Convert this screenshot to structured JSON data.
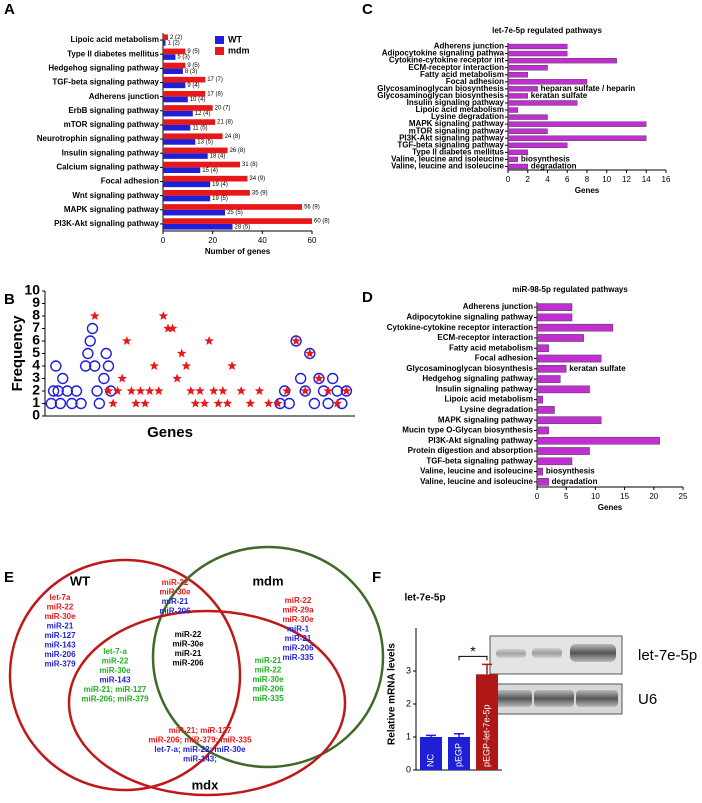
{
  "panel_labels": [
    "A",
    "B",
    "C",
    "D",
    "E",
    "F"
  ],
  "chart_data": [
    {
      "type": "hbar",
      "xlabel": "Number of genes",
      "categories": [
        "Lipoic acid metabolism",
        "Type II diabetes mellitus",
        "Hedgehog signaling pathway",
        "TGF-beta signaling pathway",
        "Adherens junction",
        "ErbB signaling pathway",
        "mTOR signaling pathway",
        "Neurotrophin signaling pathway",
        "Insulin signaling pathway",
        "Calcium signaling pathway",
        "Focal adhesion",
        "Wnt signaling pathway",
        "MAPK signaling pathway",
        "PI3K-Akt signaling pathway"
      ],
      "series": [
        {
          "name": "WT",
          "color": "#1f1fd8",
          "values": [
            1,
            5,
            8,
            9,
            10,
            12,
            11,
            13,
            18,
            15,
            19,
            19,
            25,
            28
          ],
          "value_labels": [
            "1 (2)",
            "5 (3)",
            "8 (3)",
            "9 (4)",
            "10 (4)",
            "12 (4)",
            "11 (5)",
            "13 (5)",
            "18 (4)",
            "15 (4)",
            "19 (4)",
            "19 (5)",
            "25 (5)",
            "28 (5)"
          ]
        },
        {
          "name": "mdm",
          "color": "#e81818",
          "values": [
            2,
            9,
            9,
            17,
            17,
            20,
            21,
            24,
            26,
            31,
            34,
            35,
            56,
            60
          ],
          "value_labels": [
            "2 (2)",
            "9 (5)",
            "9 (5)",
            "17 (7)",
            "17 (8)",
            "20 (7)",
            "21 (8)",
            "24 (8)",
            "26 (8)",
            "31 (8)",
            "34 (9)",
            "35 (9)",
            "56 (9)",
            "60 (8)"
          ]
        }
      ],
      "xlim": [
        0,
        60
      ],
      "xticks": [
        0,
        20,
        40,
        60
      ],
      "legend": "top-right"
    },
    {
      "type": "scatter",
      "xlabel": "Genes",
      "ylabel": "Frequency",
      "series": [
        {
          "name": "WT",
          "color": "#1f1fd8",
          "marker": "circle",
          "x": [
            1,
            2,
            3,
            4,
            5,
            6,
            8,
            10,
            12,
            14,
            16,
            17,
            18,
            19,
            20,
            21,
            22,
            24,
            25,
            26,
            27,
            101,
            103,
            105,
            108,
            110,
            112,
            114,
            116,
            118,
            120,
            122,
            124,
            126,
            128,
            130
          ],
          "values": [
            1,
            2,
            4,
            2,
            1,
            3,
            2,
            1,
            2,
            1,
            4,
            5,
            6,
            7,
            4,
            2,
            1,
            3,
            5,
            4,
            2,
            1,
            2,
            1,
            6,
            3,
            2,
            5,
            1,
            3,
            2,
            1,
            3,
            2,
            1,
            2
          ]
        },
        {
          "name": "mdm",
          "color": "#e81818",
          "marker": "star",
          "x": [
            20,
            26,
            28,
            30,
            32,
            34,
            36,
            38,
            40,
            42,
            44,
            46,
            48,
            50,
            52,
            54,
            56,
            58,
            60,
            62,
            64,
            66,
            68,
            70,
            72,
            74,
            76,
            78,
            80,
            84,
            88,
            92,
            96,
            100,
            104,
            108,
            112,
            114,
            118,
            122,
            126,
            130
          ],
          "values": [
            8,
            2,
            1,
            2,
            3,
            6,
            2,
            1,
            2,
            1,
            2,
            4,
            2,
            8,
            7,
            7,
            3,
            5,
            4,
            2,
            1,
            2,
            1,
            6,
            2,
            1,
            2,
            1,
            4,
            2,
            1,
            2,
            1,
            1,
            2,
            6,
            2,
            5,
            3,
            2,
            1,
            2
          ]
        }
      ],
      "xlim": [
        0,
        132
      ],
      "ylim": [
        0,
        10
      ],
      "yticks": [
        0,
        1,
        2,
        3,
        4,
        5,
        6,
        7,
        8,
        9,
        10
      ]
    },
    {
      "type": "hbar",
      "title": "let-7e-5p regulated pathways",
      "xlabel": "Genes",
      "color": "#c030d0",
      "categories": [
        "Adherens junction",
        "Adipocytokine signaling pathwa",
        "Cytokine-cytokine receptor int",
        "ECM-receptor interaction",
        "Fatty acid metabolism",
        "Focal adhesion",
        "Glycosaminoglycan biosynthesis",
        "Glycosaminoglycan biosynthesis",
        "Insulin signaling pathway",
        "Lipoic acid metabolism",
        "Lysine degradation",
        "MAPK signaling pathway",
        "mTOR signaling pathway",
        "PI3K-Akt signaling pathway",
        "TGF-beta signaling pathway",
        "Type II diabetes mellitus",
        "Valine, leucine and isoleucine",
        "Valine, leucine and isoleucine"
      ],
      "values": [
        6,
        6,
        11,
        4,
        2,
        8,
        3,
        2,
        7,
        1,
        4,
        14,
        4,
        14,
        6,
        2,
        1,
        2
      ],
      "bar_notes": [
        null,
        null,
        null,
        null,
        null,
        null,
        "heparan sulfate / heparin",
        "keratan sulfate",
        null,
        null,
        null,
        null,
        null,
        null,
        null,
        null,
        "biosynthesis",
        "degradation"
      ],
      "xlim": [
        0,
        16
      ],
      "xticks": [
        0,
        2,
        4,
        6,
        8,
        10,
        12,
        14,
        16
      ]
    },
    {
      "type": "hbar",
      "title": "miR-98-5p regulated pathways",
      "xlabel": "Genes",
      "color": "#c030d0",
      "categories": [
        "Adherens junction",
        "Adipocytokine signaling pathway",
        "Cytokine-cytokine receptor interaction",
        "ECM-receptor interaction",
        "Fatty acid metabolism",
        "Focal adhesion",
        "Glycosaminoglycan biosynthesis",
        "Hedgehog signaling pathway",
        "Insulin signaling pathway",
        "Lipoic acid metabolism",
        "Lysine degradation",
        "MAPK signaling pathway",
        "Mucin type O-Glycan biosynthesis",
        "PI3K-Akt signaling pathway",
        "Protein digestion and absorption",
        "TGF-beta signaling pathway",
        "Valine, leucine and isoleucine",
        "Valine, leucine and isoleucine"
      ],
      "values": [
        6,
        6,
        13,
        8,
        2,
        11,
        5,
        4,
        9,
        1,
        3,
        11,
        2,
        21,
        9,
        6,
        1,
        2
      ],
      "bar_notes": [
        null,
        null,
        null,
        null,
        null,
        null,
        "keratan sulfate",
        null,
        null,
        null,
        null,
        null,
        null,
        null,
        null,
        null,
        "biosynthesis",
        "degradation"
      ],
      "xlim": [
        0,
        25
      ],
      "xticks": [
        0,
        5,
        10,
        15,
        20,
        25
      ]
    },
    {
      "type": "vbar",
      "title": "let-7e-5p",
      "ylabel": "Relative mRNA levels",
      "categories": [
        "NC",
        "pEGP",
        "pEGP-let-7e-5p"
      ],
      "values": [
        1,
        1,
        2.9
      ],
      "errors": [
        0.05,
        0.1,
        0.3
      ],
      "colors": [
        "#1f1fd8",
        "#1f1fd8",
        "#b01818"
      ],
      "significance": "*",
      "ylim": [
        0,
        4
      ],
      "yticks": [
        0,
        1,
        2,
        3
      ]
    }
  ],
  "venn": {
    "sets": [
      "WT",
      "mdm",
      "mdx"
    ],
    "regions": [
      [
        {
          "text": "let-7a",
          "color": "#e81818"
        },
        {
          "text": "miR-22",
          "color": "#e81818"
        },
        {
          "text": "miR-30e",
          "color": "#e81818"
        },
        {
          "text": "miR-21",
          "color": "#1f1fd8"
        },
        {
          "text": "miR-127",
          "color": "#1f1fd8"
        },
        {
          "text": "miR-143",
          "color": "#1f1fd8"
        },
        {
          "text": "miR-206",
          "color": "#1f1fd8"
        },
        {
          "text": "miR-379",
          "color": "#1f1fd8"
        }
      ],
      [
        {
          "text": "miR-22",
          "color": "#e81818"
        },
        {
          "text": "miR-29a",
          "color": "#e81818"
        },
        {
          "text": "miR-30e",
          "color": "#e81818"
        },
        {
          "text": "miR-1",
          "color": "#1f1fd8"
        },
        {
          "text": "miR-21",
          "color": "#1f1fd8"
        },
        {
          "text": "miR-206",
          "color": "#1f1fd8"
        },
        {
          "text": "miR-335",
          "color": "#1f1fd8"
        }
      ],
      [
        {
          "text": "miR-22",
          "color": "#e81818"
        },
        {
          "text": "miR-30e",
          "color": "#e81818"
        },
        {
          "text": "miR-21",
          "color": "#1f1fd8"
        },
        {
          "text": "miR-206",
          "color": "#1f1fd8"
        }
      ],
      [
        {
          "text": "miR-22",
          "color": "#000000"
        },
        {
          "text": "miR-30e",
          "color": "#000000"
        },
        {
          "text": "miR-21",
          "color": "#000000"
        },
        {
          "text": "miR-206",
          "color": "#000000"
        }
      ],
      [
        {
          "text": "let-7-a",
          "color": "#20b020"
        },
        {
          "text": "miR-22",
          "color": "#20b020"
        },
        {
          "text": "miR-30e",
          "color": "#20b020"
        },
        {
          "text": "miR-143",
          "color": "#1f1fd8"
        },
        {
          "text": "miR-21; miR-127",
          "color": "#20b020"
        },
        {
          "text": "miR-206; miR-379",
          "color": "#20b020"
        }
      ],
      [
        {
          "text": "miR-21",
          "color": "#20b020"
        },
        {
          "text": "miR-22",
          "color": "#20b020"
        },
        {
          "text": "miR-30e",
          "color": "#20b020"
        },
        {
          "text": "miR-206",
          "color": "#20b020"
        },
        {
          "text": "miR-335",
          "color": "#20b020"
        }
      ],
      [
        {
          "text": "miR-21; miR-127",
          "color": "#e81818"
        },
        {
          "text": "miR-206; miR-379; miR-335",
          "color": "#e81818"
        },
        {
          "text": "let-7-a; miR-22; miR-30e",
          "color": "#1f1fd8"
        },
        {
          "text": "miR-143;",
          "color": "#1f1fd8"
        }
      ]
    ]
  },
  "blot": {
    "labels": [
      "let-7e-5p",
      "U6"
    ]
  }
}
